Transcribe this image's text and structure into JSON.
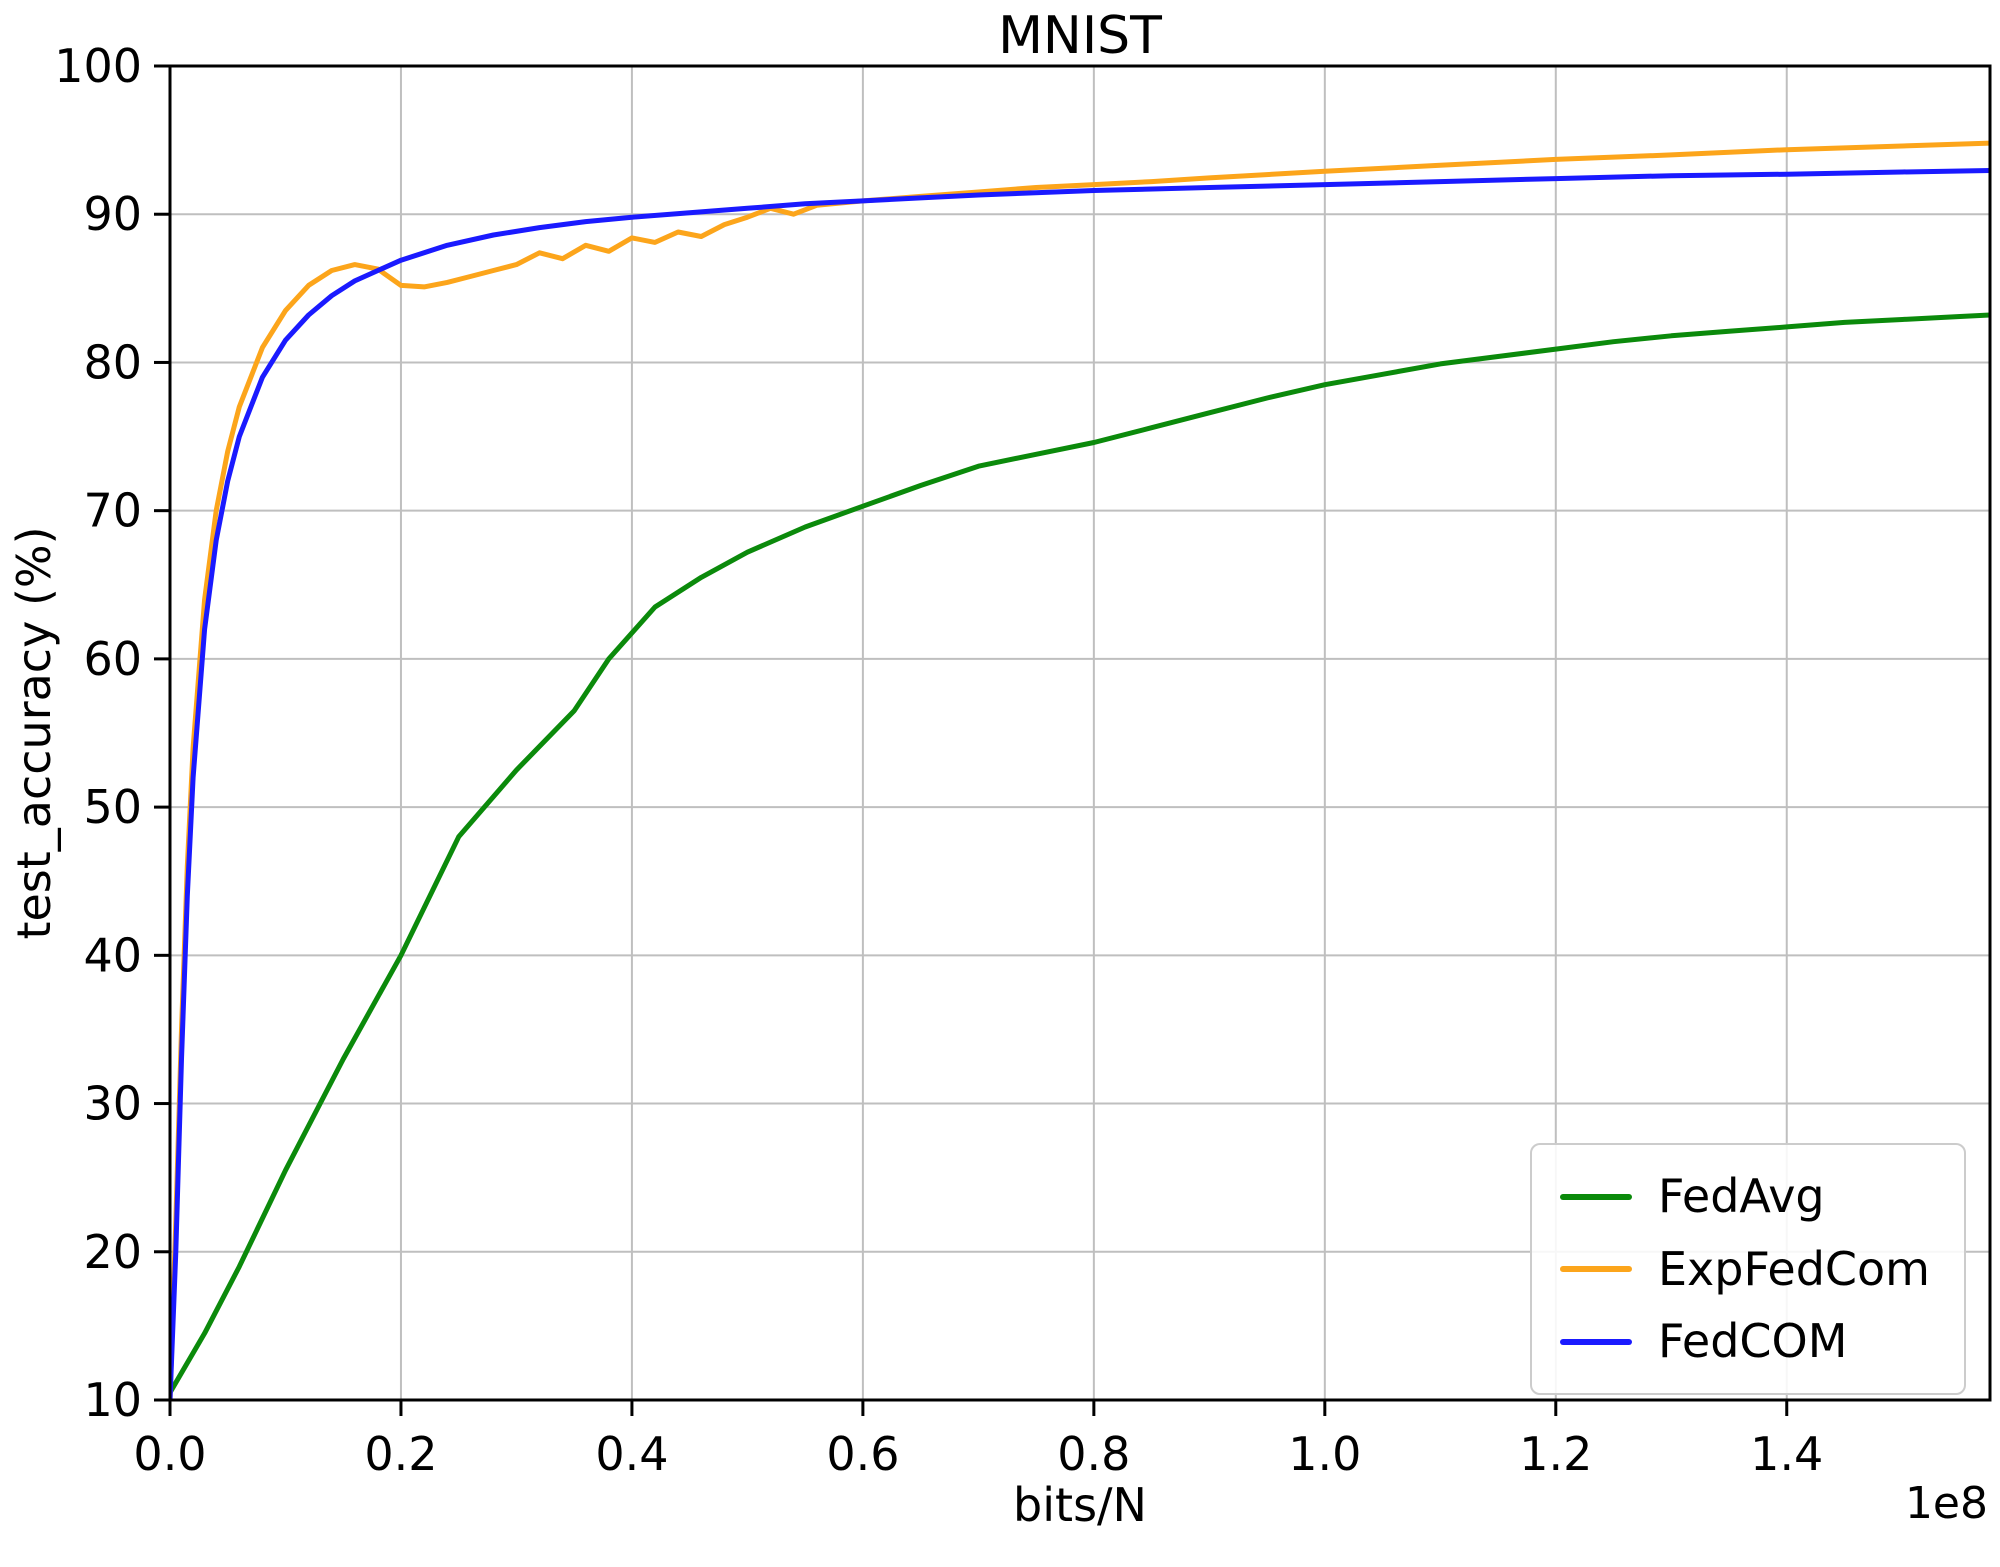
{
  "figure": {
    "background": "#ffffff"
  },
  "chart_data": {
    "type": "line",
    "title": "MNIST",
    "xlabel": "bits/N",
    "ylabel": "test_accuracy (%)",
    "x_offset_label": "1e8",
    "xlim": [
      0,
      1.576
    ],
    "ylim": [
      10,
      100
    ],
    "grid": true,
    "grid_color": "#bfbfbf",
    "legend_position": "lower right",
    "x_ticks": [
      0,
      0.2,
      0.4,
      0.6,
      0.8,
      1.0,
      1.2,
      1.4
    ],
    "x_tick_labels": [
      "0.0",
      "0.2",
      "0.4",
      "0.6",
      "0.8",
      "1.0",
      "1.2",
      "1.4"
    ],
    "y_ticks": [
      10,
      20,
      30,
      40,
      50,
      60,
      70,
      80,
      90,
      100
    ],
    "y_tick_labels": [
      "10",
      "20",
      "30",
      "40",
      "50",
      "60",
      "70",
      "80",
      "90",
      "100"
    ],
    "series": [
      {
        "name": "FedAvg",
        "color": "#0b8a0b",
        "x": [
          0,
          0.03,
          0.06,
          0.1,
          0.15,
          0.2,
          0.25,
          0.3,
          0.35,
          0.38,
          0.42,
          0.46,
          0.5,
          0.55,
          0.6,
          0.65,
          0.7,
          0.75,
          0.8,
          0.85,
          0.9,
          0.95,
          1.0,
          1.05,
          1.1,
          1.15,
          1.2,
          1.25,
          1.3,
          1.35,
          1.4,
          1.45,
          1.5,
          1.55,
          1.576
        ],
        "y": [
          10.5,
          14.5,
          19,
          25.5,
          33,
          40,
          48,
          52.5,
          56.5,
          60,
          63.5,
          65.5,
          67.2,
          68.9,
          70.3,
          71.7,
          73,
          73.8,
          74.6,
          75.6,
          76.6,
          77.6,
          78.5,
          79.2,
          79.9,
          80.4,
          80.9,
          81.4,
          81.8,
          82.1,
          82.4,
          82.7,
          82.9,
          83.1,
          83.2
        ]
      },
      {
        "name": "ExpFedCom",
        "color": "#fca51b",
        "x": [
          0,
          0.005,
          0.01,
          0.015,
          0.02,
          0.03,
          0.04,
          0.05,
          0.06,
          0.08,
          0.1,
          0.12,
          0.14,
          0.16,
          0.18,
          0.2,
          0.22,
          0.24,
          0.26,
          0.28,
          0.3,
          0.32,
          0.34,
          0.36,
          0.38,
          0.4,
          0.42,
          0.44,
          0.46,
          0.48,
          0.5,
          0.52,
          0.54,
          0.56,
          0.6,
          0.65,
          0.7,
          0.75,
          0.8,
          0.85,
          0.9,
          1.0,
          1.1,
          1.2,
          1.3,
          1.4,
          1.5,
          1.576
        ],
        "y": [
          10,
          22,
          35,
          46,
          54,
          64,
          70,
          74,
          77,
          81,
          83.5,
          85.2,
          86.2,
          86.6,
          86.3,
          85.2,
          85.1,
          85.4,
          85.8,
          86.2,
          86.6,
          87.4,
          87.0,
          87.9,
          87.5,
          88.4,
          88.1,
          88.8,
          88.5,
          89.3,
          89.8,
          90.4,
          90.0,
          90.6,
          90.9,
          91.2,
          91.5,
          91.8,
          92.0,
          92.2,
          92.45,
          92.9,
          93.3,
          93.7,
          94.0,
          94.35,
          94.6,
          94.8
        ]
      },
      {
        "name": "FedCOM",
        "color": "#1a1aff",
        "x": [
          0,
          0.005,
          0.01,
          0.015,
          0.02,
          0.03,
          0.04,
          0.05,
          0.06,
          0.08,
          0.1,
          0.12,
          0.14,
          0.16,
          0.18,
          0.2,
          0.24,
          0.28,
          0.32,
          0.36,
          0.4,
          0.45,
          0.5,
          0.55,
          0.6,
          0.65,
          0.7,
          0.8,
          0.9,
          1.0,
          1.1,
          1.2,
          1.3,
          1.4,
          1.5,
          1.576
        ],
        "y": [
          10,
          20,
          33,
          44,
          52,
          62,
          68,
          72,
          75,
          79,
          81.5,
          83.2,
          84.5,
          85.5,
          86.2,
          86.9,
          87.9,
          88.6,
          89.1,
          89.5,
          89.8,
          90.1,
          90.4,
          90.7,
          90.9,
          91.1,
          91.3,
          91.6,
          91.8,
          92.0,
          92.2,
          92.4,
          92.6,
          92.7,
          92.85,
          92.95
        ]
      }
    ]
  }
}
